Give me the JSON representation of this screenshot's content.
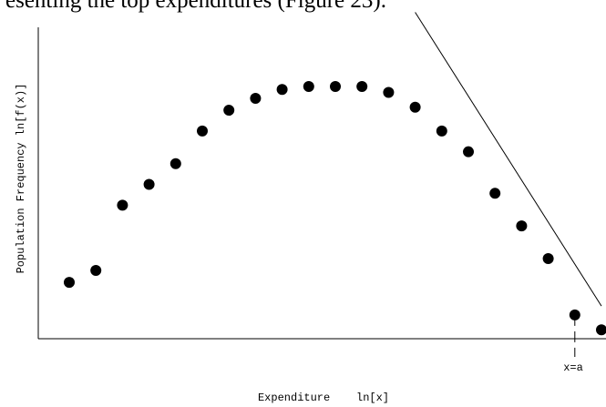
{
  "page": {
    "caption_fragment": "esenting the top expenditures (Figure 23)."
  },
  "chart_data": {
    "type": "scatter",
    "title": "",
    "xlabel": "Expenditure    ln[x]",
    "ylabel": "Population Frequency ln[f(x)]",
    "grid": false,
    "legend": "none",
    "xlim": [
      0,
      21
    ],
    "ylim": [
      0,
      10
    ],
    "series": [
      {
        "values_x": [
          1,
          2,
          3,
          4,
          5,
          6,
          7,
          8,
          9,
          10,
          11,
          12,
          13,
          14,
          15,
          16,
          17,
          18,
          19,
          20,
          21
        ],
        "values_y": [
          1.9,
          2.3,
          4.5,
          5.2,
          5.9,
          7.0,
          7.7,
          8.1,
          8.4,
          8.5,
          8.5,
          8.5,
          8.3,
          7.8,
          7.0,
          6.3,
          4.9,
          3.8,
          2.7,
          0.8,
          0.3
        ]
      }
    ],
    "tangent_line": {
      "points": [
        [
          14.0,
          11.0
        ],
        [
          21.0,
          1.1
        ]
      ]
    },
    "marker": {
      "x": 20,
      "label": "x=a",
      "style": "dashed vertical drop line"
    }
  }
}
